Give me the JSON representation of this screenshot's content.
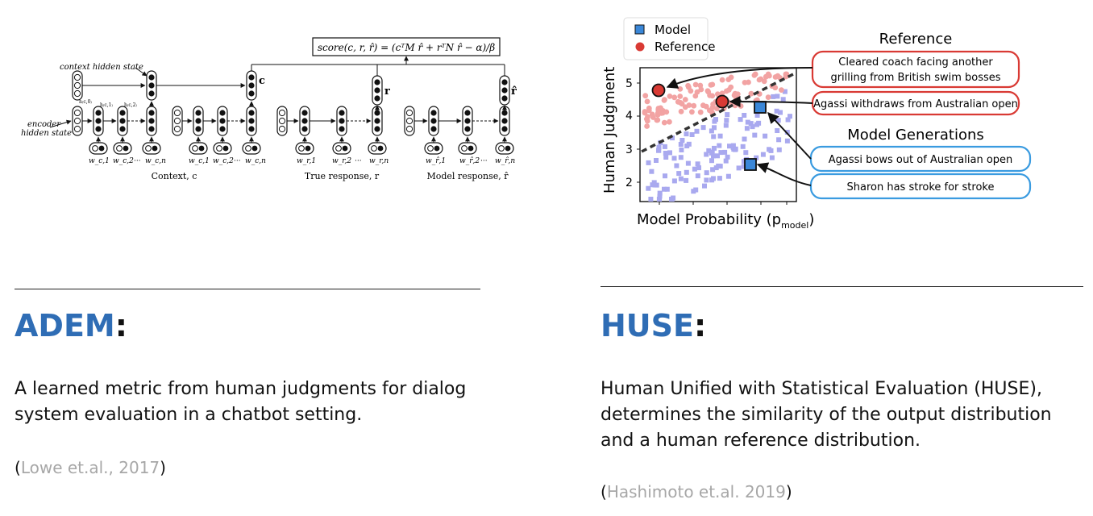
{
  "left": {
    "figure": {
      "score_formula": "score(c, r, r̂) = (cᵀM r̂ + rᵀN r̂ − α)/β",
      "context_hidden_state": "context hidden state",
      "encoder_hidden_state_line1": "encoder",
      "encoder_hidden_state_line2": "hidden state",
      "c_label": "c",
      "r_label": "r",
      "rhat_label": "r̂",
      "context_hidden": [
        "h₍c,0₎",
        "h₍c,1₎",
        "h₍c,2₎"
      ],
      "context_words": [
        "w_c,1",
        "w_c,2",
        "···",
        "w_c,n"
      ],
      "true_words": [
        "w_r,1",
        "w_r,2",
        "···",
        "w_r,n"
      ],
      "model_words": [
        "w_r̂,1",
        "w_r̂,2",
        "···",
        "w_r̂,n"
      ],
      "context_caption": "Context, c",
      "true_caption": "True response, r",
      "model_caption": "Model response, r̂"
    },
    "title_keyword": "ADEM",
    "title_suffix": ":",
    "description": "A learned metric from human judgments for dialog system evaluation in a chatbot setting.",
    "citation_open": "(",
    "citation_text": "Lowe et.al., 2017",
    "citation_close": ")"
  },
  "right": {
    "figure": {
      "legend_model": "Model",
      "legend_reference": "Reference",
      "ylabel": "Human Judgment",
      "xlabel": "Model Probability (p",
      "xlabel_sub": "model",
      "xlabel_close": ")",
      "yticks": [
        "5",
        "4",
        "3",
        "2"
      ],
      "reference_title": "Reference",
      "reference_box1_line1": "Cleared coach facing another",
      "reference_box1_line2": "grilling from British swim bosses",
      "reference_box2": "Agassi withdraws from Australian open",
      "generations_title": "Model Generations",
      "generation_box1": "Agassi bows out of Australian open",
      "generation_box2": "Sharon has stroke for stroke",
      "colors": {
        "reference": "#d93a34",
        "model": "#3a87d8",
        "reference_light": "#f2a3a3",
        "model_light": "#a9a9ef"
      }
    },
    "title_keyword": "HUSE",
    "title_suffix": ":",
    "description": "Human Unified with Statistical Evaluation (HUSE), determines the similarity of the output distribution and a human reference distribution.",
    "citation_open": "(",
    "citation_text": "Hashimoto et.al. 2019",
    "citation_close": ")"
  }
}
